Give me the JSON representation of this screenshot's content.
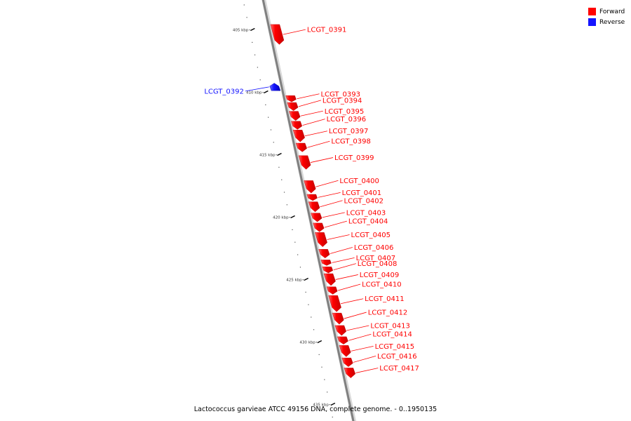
{
  "legend": {
    "forward_label": "Forward",
    "reverse_label": "Reverse",
    "forward_color": "#ff0000",
    "reverse_color": "#1414ff"
  },
  "caption": "Lactococcus garvieae ATCC 49156 DNA, complete genome. - 0..1950135",
  "colors": {
    "backbone": "#808080",
    "forward": "#ff0000",
    "reverse": "#1414ff"
  },
  "ticks": [
    {
      "label": "405 kbp",
      "pos": 405
    },
    {
      "label": "410 kbp",
      "pos": 410
    },
    {
      "label": "415 kbp",
      "pos": 415
    },
    {
      "label": "420 kbp",
      "pos": 420
    },
    {
      "label": "425 kbp",
      "pos": 425
    },
    {
      "label": "430 kbp",
      "pos": 430
    },
    {
      "label": "435 kbp",
      "pos": 435
    }
  ],
  "genes": [
    {
      "name": "LCGT_0391",
      "strand": "forward",
      "start": 404.6,
      "end": 406.2
    },
    {
      "name": "LCGT_0392",
      "strand": "reverse",
      "start": 409.3,
      "end": 409.9
    },
    {
      "name": "LCGT_0393",
      "strand": "forward",
      "start": 410.3,
      "end": 410.8
    },
    {
      "name": "LCGT_0394",
      "strand": "forward",
      "start": 410.85,
      "end": 411.5
    },
    {
      "name": "LCGT_0395",
      "strand": "forward",
      "start": 411.55,
      "end": 412.3
    },
    {
      "name": "LCGT_0396",
      "strand": "forward",
      "start": 412.35,
      "end": 413.0
    },
    {
      "name": "LCGT_0397",
      "strand": "forward",
      "start": 413.05,
      "end": 414.0
    },
    {
      "name": "LCGT_0398",
      "strand": "forward",
      "start": 414.1,
      "end": 414.8
    },
    {
      "name": "LCGT_0399",
      "strand": "forward",
      "start": 415.1,
      "end": 416.2
    },
    {
      "name": "LCGT_0400",
      "strand": "forward",
      "start": 417.1,
      "end": 418.1
    },
    {
      "name": "LCGT_0401",
      "strand": "forward",
      "start": 418.2,
      "end": 418.7
    },
    {
      "name": "LCGT_0402",
      "strand": "forward",
      "start": 418.8,
      "end": 419.6
    },
    {
      "name": "LCGT_0403",
      "strand": "forward",
      "start": 419.7,
      "end": 420.4
    },
    {
      "name": "LCGT_0404",
      "strand": "forward",
      "start": 420.5,
      "end": 421.2
    },
    {
      "name": "LCGT_0405",
      "strand": "forward",
      "start": 421.25,
      "end": 422.4
    },
    {
      "name": "LCGT_0406",
      "strand": "forward",
      "start": 422.6,
      "end": 423.3
    },
    {
      "name": "LCGT_0407",
      "strand": "forward",
      "start": 423.45,
      "end": 423.9
    },
    {
      "name": "LCGT_0408",
      "strand": "forward",
      "start": 424.0,
      "end": 424.5
    },
    {
      "name": "LCGT_0409",
      "strand": "forward",
      "start": 424.55,
      "end": 425.5
    },
    {
      "name": "LCGT_0410",
      "strand": "forward",
      "start": 425.6,
      "end": 426.2
    },
    {
      "name": "LCGT_0411",
      "strand": "forward",
      "start": 426.3,
      "end": 427.6
    },
    {
      "name": "LCGT_0412",
      "strand": "forward",
      "start": 427.7,
      "end": 428.6
    },
    {
      "name": "LCGT_0413",
      "strand": "forward",
      "start": 428.7,
      "end": 429.5
    },
    {
      "name": "LCGT_0414",
      "strand": "forward",
      "start": 429.6,
      "end": 430.2
    },
    {
      "name": "LCGT_0415",
      "strand": "forward",
      "start": 430.3,
      "end": 431.2
    },
    {
      "name": "LCGT_0416",
      "strand": "forward",
      "start": 431.3,
      "end": 432.0
    },
    {
      "name": "LCGT_0417",
      "strand": "forward",
      "start": 432.1,
      "end": 432.9
    }
  ]
}
